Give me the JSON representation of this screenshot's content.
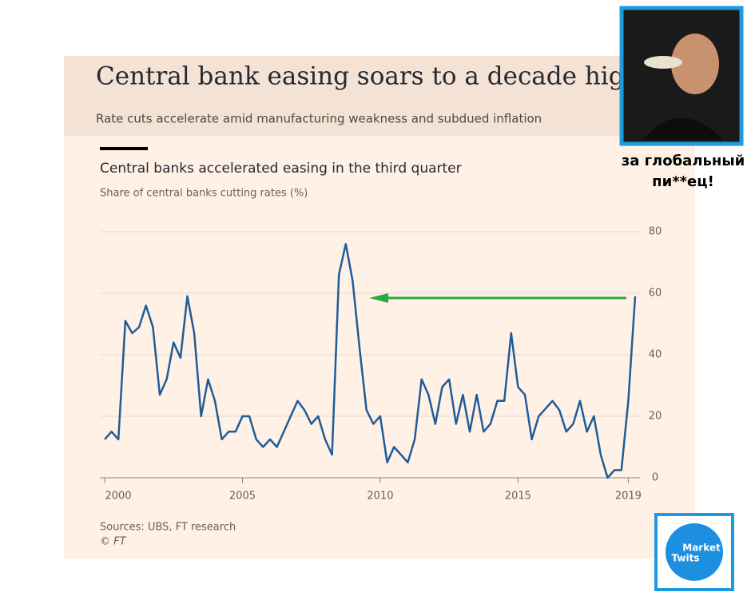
{
  "chart_data": {
    "type": "line",
    "title": "Central bank easing soars to a decade high",
    "subtitle": "Rate cuts accelerate amid manufacturing weakness and subdued inflation",
    "chart_title": "Central banks accelerated easing in the third quarter",
    "y_label": "Share of central banks cutting rates (%)",
    "source": "Sources: UBS, FT research",
    "credit": "© FT",
    "color": "#1f5c99",
    "x": [
      2000,
      2000.25,
      2000.5,
      2000.75,
      2001,
      2001.25,
      2001.5,
      2001.75,
      2002,
      2002.25,
      2002.5,
      2002.75,
      2003,
      2003.25,
      2003.5,
      2003.75,
      2004,
      2004.25,
      2004.5,
      2004.75,
      2005,
      2005.25,
      2005.5,
      2005.75,
      2006,
      2006.25,
      2006.5,
      2006.75,
      2007,
      2007.25,
      2007.5,
      2007.75,
      2008,
      2008.25,
      2008.5,
      2008.75,
      2009,
      2009.25,
      2009.5,
      2009.75,
      2010,
      2010.25,
      2010.5,
      2010.75,
      2011,
      2011.25,
      2011.5,
      2011.75,
      2012,
      2012.25,
      2012.5,
      2012.75,
      2013,
      2013.25,
      2013.5,
      2013.75,
      2014,
      2014.25,
      2014.5,
      2014.75,
      2015,
      2015.25,
      2015.5,
      2015.75,
      2016,
      2016.25,
      2016.5,
      2016.75,
      2017,
      2017.25,
      2017.5,
      2017.75,
      2018,
      2018.25,
      2018.5,
      2018.75,
      2019,
      2019.25
    ],
    "values": [
      12.5,
      15,
      12.5,
      51,
      47,
      49,
      56,
      49,
      27,
      32,
      44,
      39,
      59,
      47,
      20,
      32,
      25,
      12.5,
      15,
      15,
      20,
      20,
      12.5,
      10,
      12.5,
      10,
      15,
      20,
      25,
      22,
      17.5,
      20,
      12.5,
      7.5,
      66,
      76,
      64,
      42,
      22,
      17.5,
      20,
      5,
      10,
      7.5,
      5,
      12.5,
      32,
      27,
      17.5,
      29.5,
      32,
      17.5,
      27,
      15,
      27,
      15,
      17.5,
      25,
      25,
      47,
      29.5,
      27,
      12.5,
      20,
      22.5,
      25,
      22,
      15,
      17.5,
      25,
      15,
      20,
      7.5,
      0,
      2.5,
      2.5,
      25,
      59
    ],
    "xlim": [
      2000,
      2019.25
    ],
    "xticks": [
      2000,
      2005,
      2010,
      2015,
      2019
    ],
    "ylim": [
      0,
      80
    ],
    "yticks": [
      0,
      20,
      40,
      60,
      80
    ],
    "grid": true
  },
  "meme": {
    "caption": [
      "за глобальный",
      "пи**ец!"
    ]
  },
  "logo": {
    "lines": [
      "Market",
      "Twits"
    ]
  }
}
